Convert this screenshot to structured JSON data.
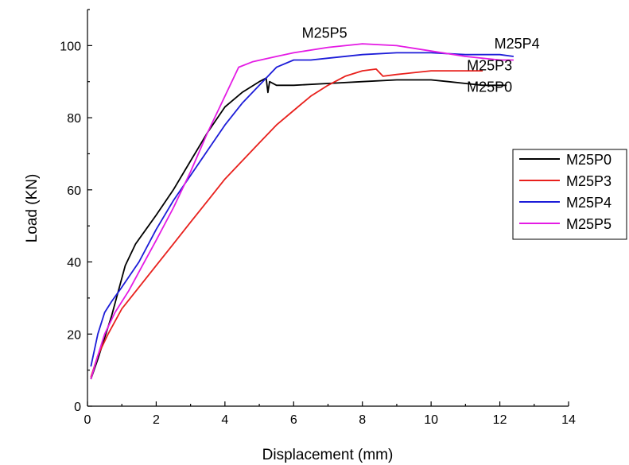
{
  "chart_data": {
    "type": "line",
    "xlabel": "Displacement (mm)",
    "ylabel": "Load (KN)",
    "xlim": [
      0,
      14
    ],
    "ylim": [
      0,
      110
    ],
    "xticks": [
      0,
      2,
      4,
      6,
      8,
      10,
      12,
      14
    ],
    "yticks": [
      0,
      20,
      40,
      60,
      80,
      100
    ],
    "grid": false,
    "legend_position": "right",
    "series": [
      {
        "name": "M25P0",
        "color": "#000000",
        "x": [
          0.1,
          0.3,
          0.5,
          0.7,
          0.9,
          1.1,
          1.4,
          1.7,
          2.0,
          2.5,
          3.0,
          3.5,
          4.0,
          4.5,
          5.0,
          5.2,
          5.25,
          5.3,
          5.5,
          6.0,
          7.0,
          8.0,
          9.0,
          10.0,
          10.5,
          11.0,
          11.5,
          12.2
        ],
        "y": [
          7.5,
          13,
          19,
          25,
          32,
          39,
          45,
          49,
          53,
          60,
          68,
          76,
          83,
          87,
          90,
          91,
          87,
          90,
          89,
          89,
          89.5,
          90,
          90.5,
          90.5,
          90,
          89.5,
          89,
          89
        ]
      },
      {
        "name": "M25P3",
        "color": "#e8201c",
        "x": [
          0.1,
          0.3,
          0.6,
          1.0,
          1.5,
          2.0,
          2.5,
          3.0,
          3.5,
          4.0,
          4.5,
          5.0,
          5.5,
          6.0,
          6.5,
          7.0,
          7.5,
          8.0,
          8.4,
          8.6,
          9.0,
          9.5,
          10.0,
          10.5,
          11.0,
          11.5
        ],
        "y": [
          8,
          14,
          20,
          27,
          33,
          39,
          45,
          51,
          57,
          63,
          68,
          73,
          78,
          82,
          86,
          89,
          91.5,
          93,
          93.5,
          91.5,
          92,
          92.5,
          93,
          93,
          93,
          93
        ]
      },
      {
        "name": "M25P4",
        "color": "#1c1cd8",
        "x": [
          0.1,
          0.3,
          0.5,
          0.7,
          1.0,
          1.5,
          2.0,
          2.5,
          3.0,
          3.5,
          4.0,
          4.5,
          5.0,
          5.5,
          6.0,
          6.5,
          7.0,
          8.0,
          9.0,
          10.0,
          11.0,
          12.0,
          12.4
        ],
        "y": [
          11,
          20,
          26,
          29,
          33,
          40,
          49,
          57,
          64,
          71,
          78,
          84,
          89,
          94,
          96,
          96,
          96.5,
          97.5,
          98,
          98,
          97.5,
          97.5,
          97
        ]
      },
      {
        "name": "M25P5",
        "color": "#e41be4",
        "x": [
          0.1,
          0.3,
          0.5,
          0.8,
          1.2,
          1.6,
          2.0,
          2.5,
          3.0,
          3.5,
          4.0,
          4.4,
          4.8,
          5.5,
          6.0,
          7.0,
          8.0,
          9.0,
          10.0,
          11.0,
          12.0,
          12.4
        ],
        "y": [
          7.5,
          14,
          20,
          26,
          32,
          39,
          46,
          55,
          65,
          76,
          86,
          94,
          95.5,
          97,
          98,
          99.5,
          100.5,
          100,
          98.5,
          97,
          96,
          96
        ]
      }
    ],
    "annotations": [
      {
        "text": "M25P5",
        "x": 6.9,
        "y": 103.5
      },
      {
        "text": "M25P4",
        "x": 12.5,
        "y": 100.5
      },
      {
        "text": "M25P3",
        "x": 11.7,
        "y": 94.5
      },
      {
        "text": "M25P0",
        "x": 11.7,
        "y": 88.5
      }
    ]
  }
}
